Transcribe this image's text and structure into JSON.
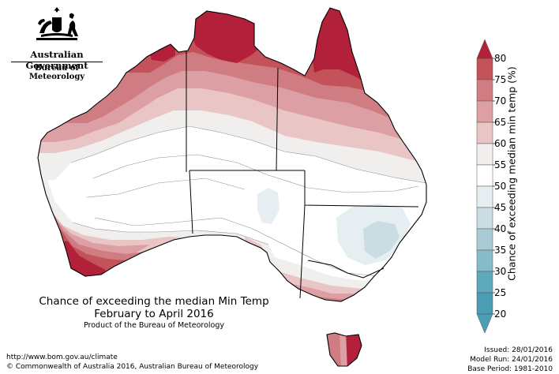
{
  "logo": {
    "government": "Australian Government",
    "bureau": "Bureau of Meteorology",
    "icon": "coat-of-arms-icon"
  },
  "title": {
    "line1": "Chance of exceeding the median Min Temp",
    "line2": "February to April 2016"
  },
  "subtitle": "Product of the Bureau of Meteorology",
  "footer": {
    "url": "http://www.bom.gov.au/climate",
    "copyright": "© Commonwealth of Australia 2016, Australian Bureau of Meteorology"
  },
  "info": {
    "issued": "Issued: 28/01/2016",
    "model_run": "Model Run: 24/01/2016",
    "base_period": "Base Period: 1981-2010"
  },
  "legend": {
    "title": "Chance of exceeding median min temp (%)",
    "ticks": [
      "80",
      "75",
      "70",
      "65",
      "60",
      "55",
      "50",
      "45",
      "40",
      "35",
      "30",
      "25",
      "20"
    ],
    "colors": [
      "#b3203a",
      "#c4525a",
      "#d07c83",
      "#dc9fa3",
      "#e9c5c6",
      "#f1efee",
      "#ffffff",
      "#e6eef2",
      "#c9dde2",
      "#a9ccd4",
      "#86bcc8",
      "#5ea8bb",
      "#4a9db3"
    ]
  },
  "map_colors": {
    "80": "#b3203a",
    "75": "#c4525a",
    "70": "#d07c83",
    "65": "#dc9fa3",
    "60": "#e9c5c6",
    "55": "#f1efee",
    "50": "#ffffff",
    "45": "#e6eef2",
    "40": "#c9dde2"
  }
}
